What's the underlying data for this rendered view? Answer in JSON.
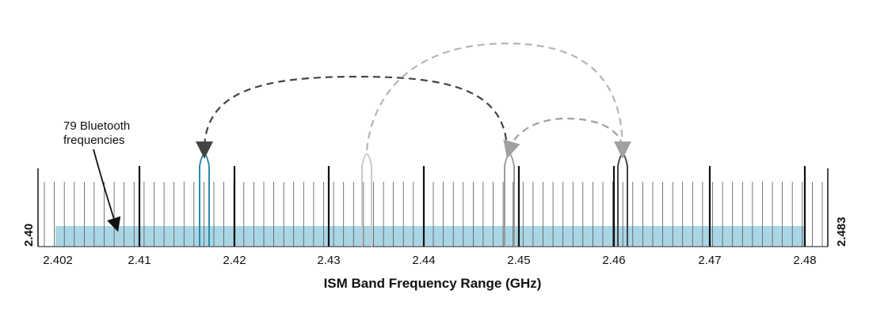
{
  "diagram": {
    "axis_title": "ISM Band Frequency Range (GHz)",
    "left_edge_label": "2.40",
    "right_edge_label": "2.483",
    "callout_lines": [
      "79 Bluetooth",
      "frequencies"
    ],
    "tick_labels": [
      "2.402",
      "2.41",
      "2.42",
      "2.43",
      "2.44",
      "2.45",
      "2.46",
      "2.47",
      "2.48"
    ],
    "channel_count": 79,
    "band_color": "#a9d6e5",
    "hops": [
      {
        "from": "2.4485",
        "to": "2.4165",
        "color": "#444444"
      },
      {
        "from": "2.4345",
        "to": "2.4612",
        "color": "#b5b5b5"
      },
      {
        "from": "2.4612",
        "to": "2.4485",
        "color": "#a0a0a0"
      }
    ],
    "pulses": [
      {
        "freq": "2.4165",
        "color": "#2b8aa8"
      },
      {
        "freq": "2.4345",
        "color": "#c8c8c8"
      },
      {
        "freq": "2.4485",
        "color": "#9a9a9a"
      },
      {
        "freq": "2.4612",
        "color": "#444444"
      }
    ]
  }
}
